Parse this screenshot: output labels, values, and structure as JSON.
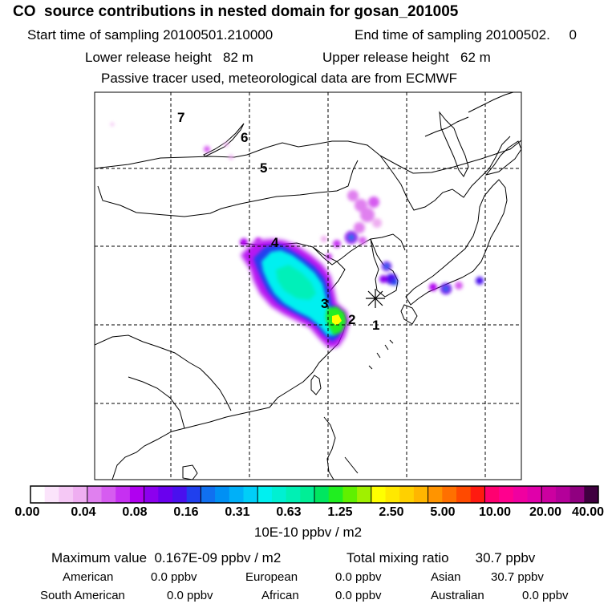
{
  "header": {
    "title": "CO  source contributions in nested domain for gosan_201005",
    "start_label": "Start time of sampling 20100501.210000",
    "end_label": "End time of sampling 20100502.     0",
    "lower_release": "Lower release height   82 m",
    "upper_release": "Upper release height   62 m",
    "tracer_note": "Passive tracer used, meteorological data are from ECMWF"
  },
  "map": {
    "receptor_symbol": "star",
    "region_labels": [
      "1",
      "2",
      "3",
      "4",
      "5",
      "6",
      "7"
    ],
    "gridlines": "dashed"
  },
  "colorbar": {
    "tick_labels": [
      "0.00",
      "0.04",
      "0.08",
      "0.16",
      "0.31",
      "0.63",
      "1.25",
      "2.50",
      "5.00",
      "10.00",
      "20.00",
      "40.00"
    ],
    "units": "10E-10 ppbv / m2",
    "colors": [
      "#ffffff",
      "#fbe4fb",
      "#f5c8f5",
      "#efaef1",
      "#e080ef",
      "#d65cf0",
      "#c630f2",
      "#b000f0",
      "#8c00ee",
      "#6a00ee",
      "#4a10ee",
      "#2040ee",
      "#1070f0",
      "#0090f4",
      "#00b0f8",
      "#00cef8",
      "#00f0f0",
      "#00f0d2",
      "#00f0b4",
      "#00ee96",
      "#00e660",
      "#20ee20",
      "#60f000",
      "#a0f000",
      "#ffff00",
      "#ffe800",
      "#ffd000",
      "#ffb600",
      "#ff9400",
      "#ff7000",
      "#ff4a00",
      "#ff1a10",
      "#ff0070",
      "#ff008e",
      "#f000a0",
      "#e000aa",
      "#cc00a0",
      "#b4009a",
      "#900080",
      "#400040"
    ]
  },
  "stats": {
    "maximum": "Maximum value  0.167E-09 ppbv / m2",
    "total": "Total mixing ratio       30.7 ppbv",
    "regions": [
      {
        "name": "American",
        "value": "0.0 ppbv"
      },
      {
        "name": "European",
        "value": "0.0 ppbv"
      },
      {
        "name": "Asian",
        "value": "30.7 ppbv"
      },
      {
        "name": "South American",
        "value": "0.0 ppbv"
      },
      {
        "name": "African",
        "value": "0.0 ppbv"
      },
      {
        "name": "Australian",
        "value": "0.0 ppbv"
      }
    ]
  }
}
